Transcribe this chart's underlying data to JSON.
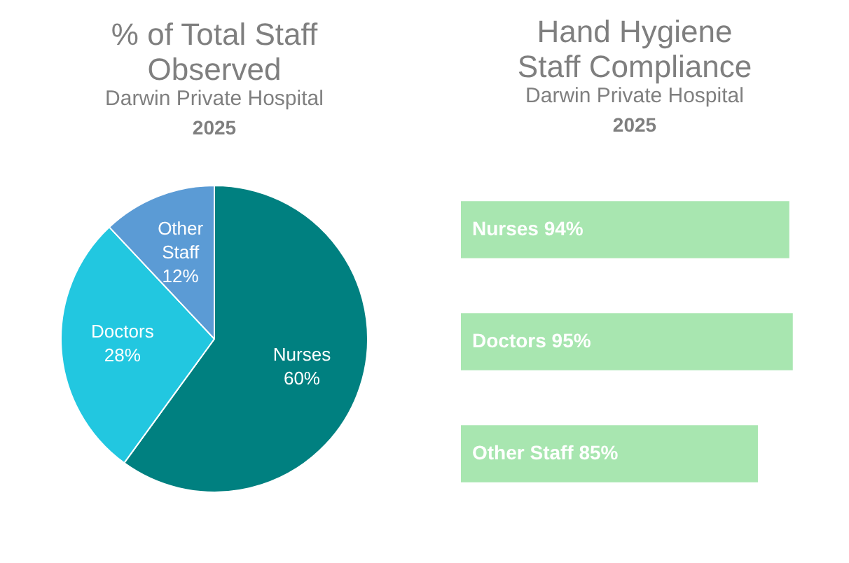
{
  "chart_data": [
    {
      "type": "pie",
      "title": "% of Total Staff Observed",
      "subtitle": "Darwin Private Hospital",
      "annotations": [
        "2025"
      ],
      "categories": [
        "Nurses",
        "Doctors",
        "Other Staff"
      ],
      "values": [
        60,
        28,
        12
      ],
      "value_labels": [
        "60%",
        "28%",
        "12%"
      ],
      "colors": [
        "#008080",
        "#22c7e0",
        "#5b9bd5"
      ],
      "legend": false
    },
    {
      "type": "bar",
      "orientation": "horizontal",
      "title": "Hand Hygiene Staff Compliance",
      "subtitle": "Darwin Private Hospital",
      "annotations": [
        "2025"
      ],
      "categories": [
        "Nurses",
        "Doctors",
        "Other Staff"
      ],
      "values": [
        94,
        95,
        85
      ],
      "value_labels": [
        "94%",
        "95%",
        "85%"
      ],
      "color": "#a8e6b0",
      "legend": false,
      "tick_labels": false,
      "grid": false
    }
  ]
}
